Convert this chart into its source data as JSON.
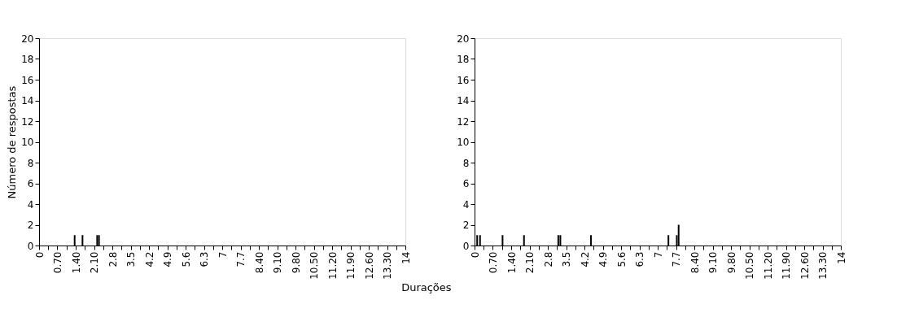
{
  "chart_data": [
    {
      "type": "bar",
      "ylabel": "Número de respostas",
      "xlabel": "Durações",
      "x": [
        1.36,
        1.66,
        2.22,
        2.29
      ],
      "values": [
        1,
        1,
        1,
        1
      ],
      "color": "#000000",
      "xlim": [
        0,
        14
      ],
      "ylim": [
        0,
        20
      ],
      "yticks": [
        0,
        2,
        4,
        6,
        8,
        10,
        12,
        14,
        16,
        18,
        20
      ],
      "grid": false,
      "xticks": [
        0,
        {
          "value": 0.35,
          "label": null
        },
        {
          "value": 0.7,
          "label": "0.70"
        },
        {
          "value": 1.05,
          "label": null
        },
        {
          "value": 1.4,
          "label": "1.40"
        },
        {
          "value": 1.75,
          "label": null
        },
        {
          "value": 2.1,
          "label": "2.10"
        },
        {
          "value": 2.45,
          "label": null
        },
        2.8,
        {
          "value": 3.15,
          "label": null
        },
        3.5,
        {
          "value": 3.85,
          "label": null
        },
        4.2,
        {
          "value": 4.55,
          "label": null
        },
        4.9,
        {
          "value": 5.25,
          "label": null
        },
        5.6,
        {
          "value": 5.95,
          "label": null
        },
        6.3,
        {
          "value": 6.65,
          "label": null
        },
        7,
        {
          "value": 7.35,
          "label": null
        },
        7.7,
        {
          "value": 8.05,
          "label": null
        },
        {
          "value": 8.4,
          "label": "8.40"
        },
        {
          "value": 8.75,
          "label": null
        },
        {
          "value": 9.1,
          "label": "9.10"
        },
        {
          "value": 9.45,
          "label": null
        },
        {
          "value": 9.8,
          "label": "9.80"
        },
        {
          "value": 10.15,
          "label": null
        },
        {
          "value": 10.5,
          "label": "10.50"
        },
        {
          "value": 10.85,
          "label": null
        },
        {
          "value": 11.2,
          "label": "11.20"
        },
        {
          "value": 11.55,
          "label": null
        },
        {
          "value": 11.9,
          "label": "11.90"
        },
        {
          "value": 12.25,
          "label": null
        },
        {
          "value": 12.6,
          "label": "12.60"
        },
        {
          "value": 12.95,
          "label": null
        },
        {
          "value": 13.3,
          "label": "13.30"
        },
        {
          "value": 13.65,
          "label": null
        },
        14
      ]
    },
    {
      "type": "bar",
      "x": [
        0.1,
        0.21,
        1.07,
        1.89,
        3.2,
        3.28,
        4.45,
        7.41,
        7.73,
        7.8
      ],
      "values": [
        1,
        1,
        1,
        1,
        1,
        1,
        1,
        1,
        1,
        2
      ],
      "color": "#000000",
      "xlim": [
        0,
        14
      ],
      "ylim": [
        0,
        20
      ],
      "yticks": [
        0,
        2,
        4,
        6,
        8,
        10,
        12,
        14,
        16,
        18,
        20
      ],
      "grid": false,
      "xticks": [
        0,
        {
          "value": 0.35,
          "label": null
        },
        {
          "value": 0.7,
          "label": "0.70"
        },
        {
          "value": 1.05,
          "label": null
        },
        {
          "value": 1.4,
          "label": "1.40"
        },
        {
          "value": 1.75,
          "label": null
        },
        {
          "value": 2.1,
          "label": "2.10"
        },
        {
          "value": 2.45,
          "label": null
        },
        2.8,
        {
          "value": 3.15,
          "label": null
        },
        3.5,
        {
          "value": 3.85,
          "label": null
        },
        4.2,
        {
          "value": 4.55,
          "label": null
        },
        4.9,
        {
          "value": 5.25,
          "label": null
        },
        5.6,
        {
          "value": 5.95,
          "label": null
        },
        6.3,
        {
          "value": 6.65,
          "label": null
        },
        7,
        {
          "value": 7.35,
          "label": null
        },
        7.7,
        {
          "value": 8.05,
          "label": null
        },
        {
          "value": 8.4,
          "label": "8.40"
        },
        {
          "value": 8.75,
          "label": null
        },
        {
          "value": 9.1,
          "label": "9.10"
        },
        {
          "value": 9.45,
          "label": null
        },
        {
          "value": 9.8,
          "label": "9.80"
        },
        {
          "value": 10.15,
          "label": null
        },
        {
          "value": 10.5,
          "label": "10.50"
        },
        {
          "value": 10.85,
          "label": null
        },
        {
          "value": 11.2,
          "label": "11.20"
        },
        {
          "value": 11.55,
          "label": null
        },
        {
          "value": 11.9,
          "label": "11.90"
        },
        {
          "value": 12.25,
          "label": null
        },
        {
          "value": 12.6,
          "label": "12.60"
        },
        {
          "value": 12.95,
          "label": null
        },
        {
          "value": 13.3,
          "label": "13.30"
        },
        {
          "value": 13.65,
          "label": null
        },
        14
      ]
    }
  ]
}
